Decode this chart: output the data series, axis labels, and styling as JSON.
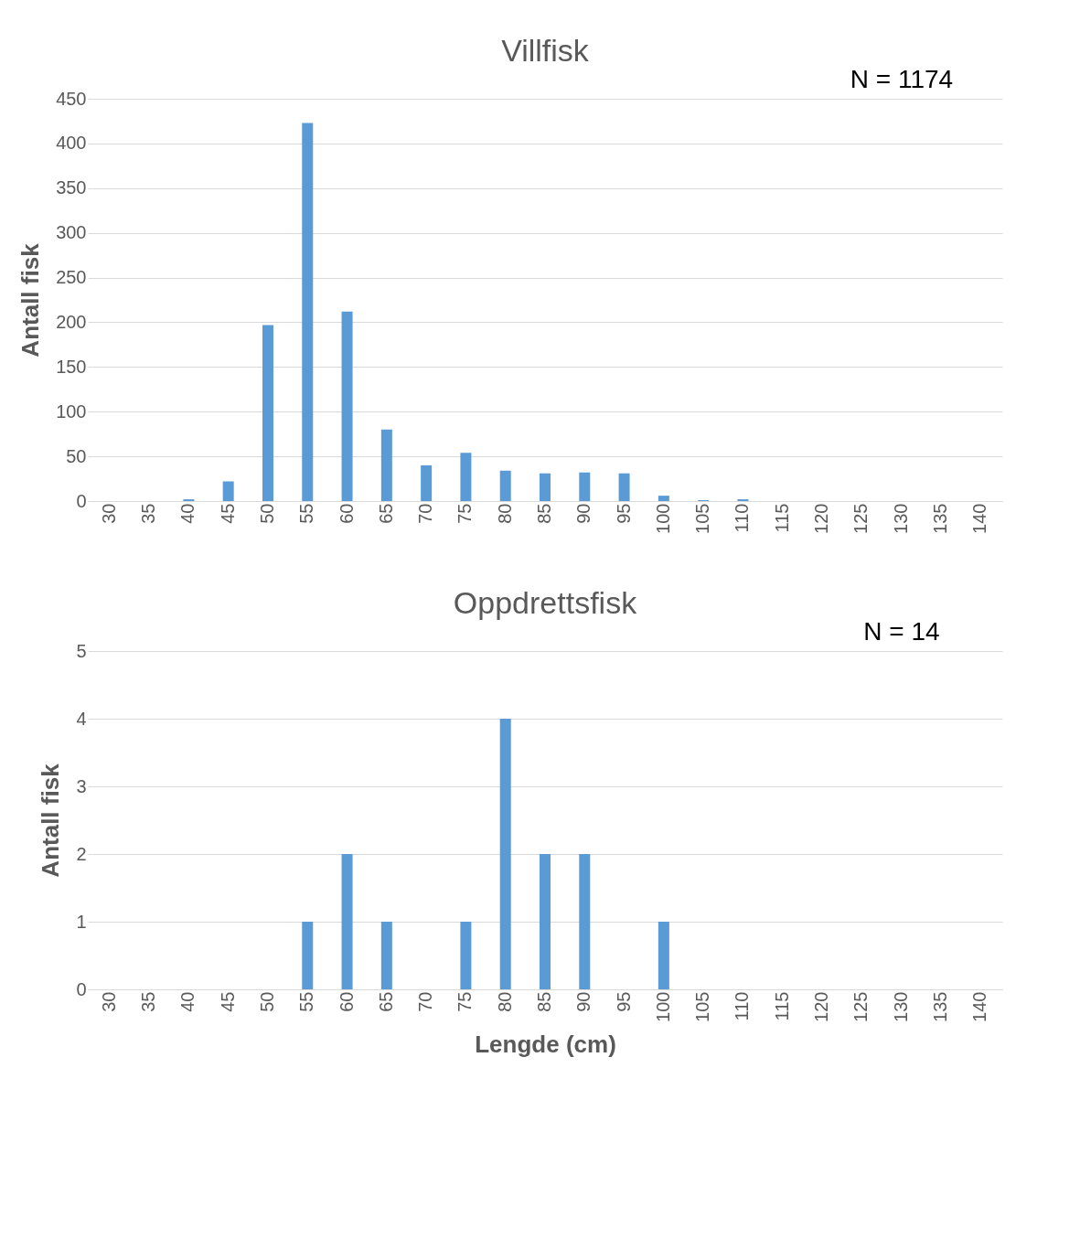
{
  "chart_data": [
    {
      "type": "bar",
      "title": "Villfisk",
      "ylabel": "Antall fisk",
      "annotations": [
        "N = 1174"
      ],
      "color": "#5b9bd5",
      "grid": "y",
      "categories": [
        "30",
        "35",
        "40",
        "45",
        "50",
        "55",
        "60",
        "65",
        "70",
        "75",
        "80",
        "85",
        "90",
        "95",
        "100",
        "105",
        "110",
        "115",
        "120",
        "125",
        "130",
        "135",
        "140"
      ],
      "values": [
        0,
        0,
        2,
        22,
        197,
        423,
        212,
        80,
        40,
        54,
        34,
        31,
        32,
        31,
        6,
        1,
        2,
        0,
        0,
        0,
        0,
        0,
        0
      ],
      "ylim": [
        0,
        450
      ],
      "yticks": [
        0,
        50,
        100,
        150,
        200,
        250,
        300,
        350,
        400,
        450
      ]
    },
    {
      "type": "bar",
      "title": "Oppdrettsfisk",
      "ylabel": "Antall fisk",
      "xlabel": "Lengde (cm)",
      "annotations": [
        "N = 14"
      ],
      "color": "#5b9bd5",
      "grid": "y",
      "categories": [
        "30",
        "35",
        "40",
        "45",
        "50",
        "55",
        "60",
        "65",
        "70",
        "75",
        "80",
        "85",
        "90",
        "95",
        "100",
        "105",
        "110",
        "115",
        "120",
        "125",
        "130",
        "135",
        "140"
      ],
      "values": [
        0,
        0,
        0,
        0,
        0,
        1,
        2,
        1,
        0,
        1,
        4,
        2,
        2,
        0,
        1,
        0,
        0,
        0,
        0,
        0,
        0,
        0,
        0
      ],
      "ylim": [
        0,
        5
      ],
      "yticks": [
        0,
        1,
        2,
        3,
        4,
        5
      ]
    }
  ]
}
